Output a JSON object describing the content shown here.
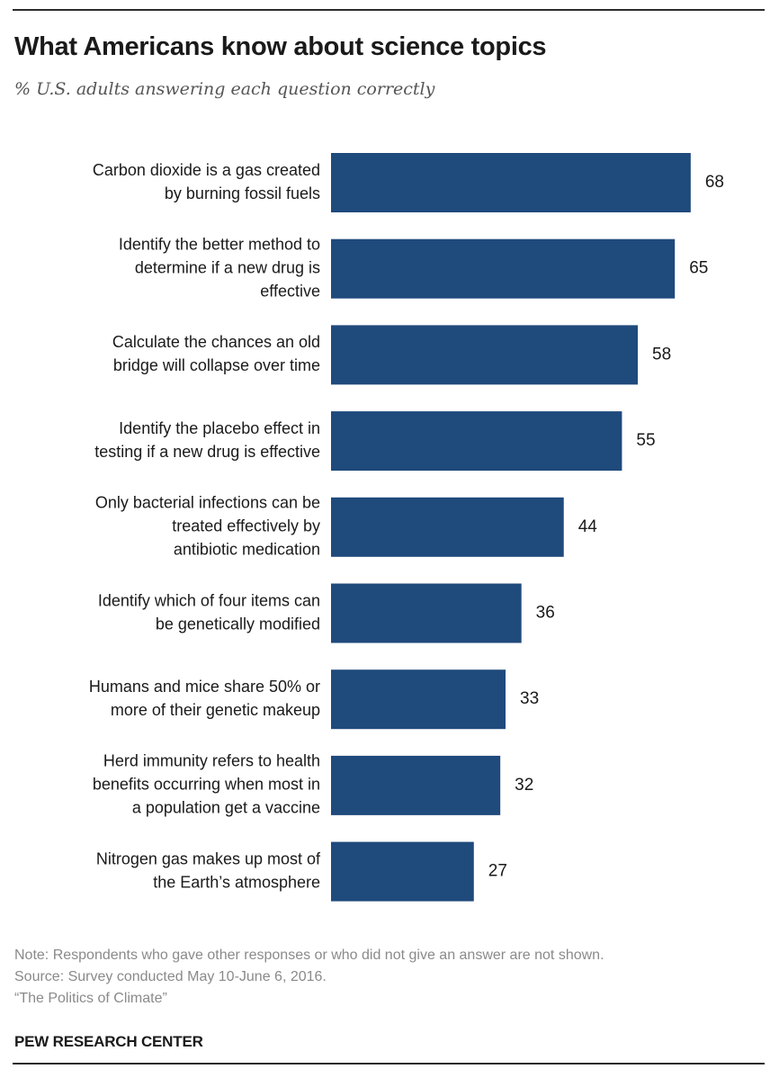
{
  "title": "What Americans know about science topics",
  "subtitle": "% U.S. adults answering each question correctly",
  "notes": {
    "note": "Note: Respondents who gave other responses or who did not give an answer are not shown.",
    "source": "Source: Survey conducted May 10-June 6, 2016.",
    "report": "“The Politics of Climate”"
  },
  "brand": "PEW RESEARCH CENTER",
  "colors": {
    "bar": "#1f4a7c"
  },
  "chart_data": {
    "type": "bar",
    "orientation": "horizontal",
    "title": "What Americans know about science topics",
    "subtitle": "% U.S. adults answering each question correctly",
    "xlabel": "",
    "ylabel": "",
    "xlim": [
      0,
      100
    ],
    "grid": false,
    "legend": "none",
    "categories": [
      [
        "Carbon dioxide is a gas created",
        "by burning fossil fuels"
      ],
      [
        "Identify the better method to",
        "determine if a  new drug is",
        "effective"
      ],
      [
        "Calculate the  chances an old",
        "bridge  will collapse over  time"
      ],
      [
        "Identify the  placebo effect in",
        "testing if a new drug is effective"
      ],
      [
        "Only bacterial infections can be",
        "treated effectively by",
        "antibiotic medication"
      ],
      [
        "Identify which  of four items can",
        "be  genetically modified"
      ],
      [
        "Humans and mice share 50% or",
        "more of their genetic makeup"
      ],
      [
        "Herd immunity refers to health",
        "benefits occurring when most  in",
        "a population get a vaccine"
      ],
      [
        "Nitrogen gas makes up most of",
        "the Earth’s atmosphere"
      ]
    ],
    "values": [
      68,
      65,
      58,
      55,
      44,
      36,
      33,
      32,
      27
    ]
  }
}
